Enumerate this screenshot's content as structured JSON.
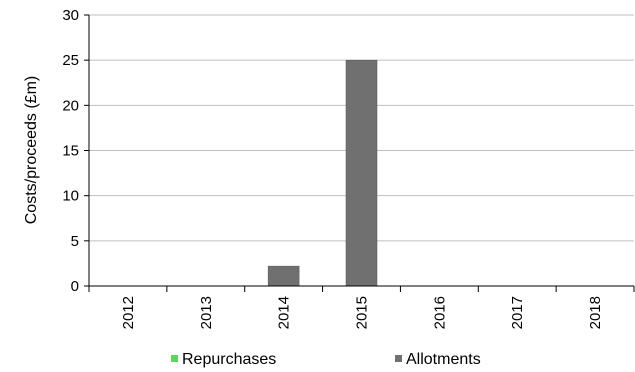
{
  "chart_data": {
    "type": "bar",
    "categories": [
      "2012",
      "2013",
      "2014",
      "2015",
      "2016",
      "2017",
      "2018"
    ],
    "series": [
      {
        "name": "Repurchases",
        "values": [
          0,
          0,
          0,
          0,
          0,
          0,
          0
        ],
        "color": "#5cd65c"
      },
      {
        "name": "Allotments",
        "values": [
          0,
          0,
          2.2,
          25,
          0,
          0,
          0
        ],
        "color": "#707070"
      }
    ],
    "title": "",
    "xlabel": "",
    "ylabel": "Costs/proceeds (£m)",
    "ylim": [
      0,
      30
    ],
    "yticks": [
      0,
      5,
      10,
      15,
      20,
      25,
      30
    ],
    "grid": true,
    "legend_position": "bottom",
    "gridline_color": "#bfbfbf",
    "axis_color": "#000000"
  }
}
